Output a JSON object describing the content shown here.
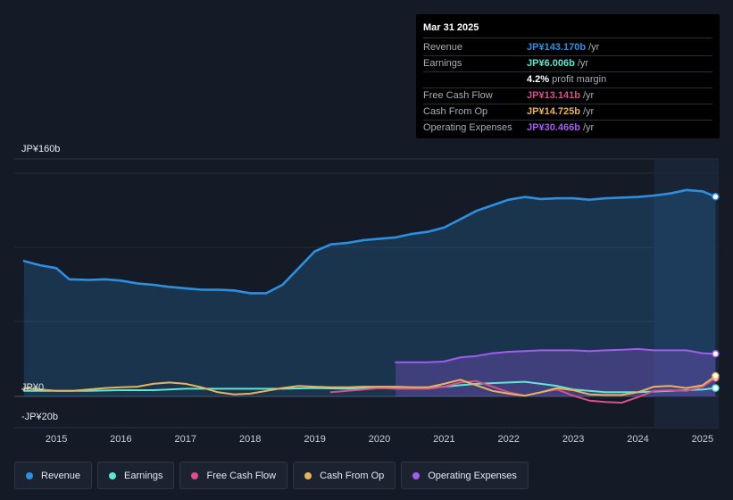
{
  "tooltip": {
    "date": "Mar 31 2025",
    "rows": [
      {
        "label": "Revenue",
        "value": "JP¥143.170b",
        "unit": "/yr",
        "color": "#2d8fe0"
      },
      {
        "label": "Earnings",
        "value": "JP¥6.006b",
        "unit": "/yr",
        "color": "#5ee8d4"
      },
      {
        "label": "",
        "value": "4.2%",
        "unit": "profit margin",
        "color": "#ffffff"
      },
      {
        "label": "Free Cash Flow",
        "value": "JP¥13.141b",
        "unit": "/yr",
        "color": "#d8508a"
      },
      {
        "label": "Cash From Op",
        "value": "JP¥14.725b",
        "unit": "/yr",
        "color": "#e9b35b"
      },
      {
        "label": "Operating Expenses",
        "value": "JP¥30.466b",
        "unit": "/yr",
        "color": "#a35cf0"
      }
    ]
  },
  "legend": [
    {
      "label": "Revenue",
      "color": "#2d8fe0"
    },
    {
      "label": "Earnings",
      "color": "#5ee8d4"
    },
    {
      "label": "Free Cash Flow",
      "color": "#d8508a"
    },
    {
      "label": "Cash From Op",
      "color": "#e9b35b"
    },
    {
      "label": "Operating Expenses",
      "color": "#a35cf0"
    }
  ],
  "chart_data": {
    "type": "area",
    "ylim": [
      -20,
      160
    ],
    "y_tick_labels": [
      {
        "value": 160,
        "label": "JP¥160b"
      },
      {
        "value": 0,
        "label": "JP¥0"
      },
      {
        "value": -20,
        "label": "-JP¥20b"
      }
    ],
    "x_tick_labels": [
      "2015",
      "2016",
      "2017",
      "2018",
      "2019",
      "2020",
      "2021",
      "2022",
      "2023",
      "2024",
      "2025"
    ],
    "x_ticks": [
      2015,
      2016,
      2017,
      2018,
      2019,
      2020,
      2021,
      2022,
      2023,
      2024,
      2025
    ],
    "xlim": [
      2014.35,
      2025.25
    ],
    "forecast_shade_start": 2024.25,
    "series": [
      {
        "name": "Revenue",
        "color": "#2d8fe0",
        "fill": true,
        "x": [
          2014.5,
          2014.75,
          2015.0,
          2015.2,
          2015.5,
          2015.75,
          2016.0,
          2016.25,
          2016.5,
          2016.75,
          2017.0,
          2017.25,
          2017.5,
          2017.75,
          2018.0,
          2018.25,
          2018.5,
          2018.75,
          2019.0,
          2019.25,
          2019.5,
          2019.75,
          2020.0,
          2020.25,
          2020.5,
          2020.75,
          2021.0,
          2021.25,
          2021.5,
          2021.75,
          2022.0,
          2022.25,
          2022.5,
          2022.75,
          2023.0,
          2023.25,
          2023.5,
          2023.75,
          2024.0,
          2024.25,
          2024.5,
          2024.75,
          2025.0,
          2025.2
        ],
        "values": [
          97,
          94,
          92,
          84,
          83.5,
          84,
          83,
          81,
          80,
          78.5,
          77.5,
          76.5,
          76.5,
          76,
          74,
          74,
          80,
          92,
          104,
          109,
          110,
          112,
          113,
          114,
          116.5,
          118,
          121,
          127,
          133,
          137,
          141,
          143,
          141.5,
          142,
          142,
          141,
          142,
          142.5,
          143,
          144,
          145.5,
          148,
          147,
          143.2
        ]
      },
      {
        "name": "Earnings",
        "color": "#5ee8d4",
        "fill": false,
        "x": [
          2014.5,
          2015.0,
          2015.5,
          2016.0,
          2016.5,
          2017.0,
          2017.5,
          2018.0,
          2018.5,
          2019.0,
          2019.5,
          2020.0,
          2020.5,
          2021.0,
          2021.5,
          2022.0,
          2022.25,
          2022.5,
          2022.75,
          2023.0,
          2023.5,
          2024.0,
          2024.5,
          2024.75,
          2025.0,
          2025.2
        ],
        "values": [
          4,
          4,
          4,
          4.5,
          4.5,
          5.5,
          5.5,
          5.5,
          5.5,
          6,
          5.5,
          6,
          6,
          7,
          9,
          10,
          10.5,
          9,
          7.5,
          5,
          3,
          3,
          4,
          4.5,
          5,
          6
        ]
      },
      {
        "name": "Free Cash Flow",
        "color": "#d8508a",
        "fill": false,
        "x": [
          2019.25,
          2019.5,
          2019.75,
          2020.0,
          2020.25,
          2020.5,
          2020.75,
          2021.0,
          2021.25,
          2021.5,
          2021.75,
          2022.0,
          2022.25,
          2022.5,
          2022.75,
          2023.0,
          2023.25,
          2023.5,
          2023.75,
          2024.0,
          2024.25,
          2024.5,
          2024.75,
          2025.0,
          2025.2
        ],
        "values": [
          3,
          4,
          5,
          6,
          5.5,
          5.5,
          5.5,
          7,
          10,
          11,
          7,
          3,
          0.5,
          3,
          5,
          0.5,
          -3,
          -4,
          -4.5,
          -0.5,
          4,
          4.5,
          4,
          7,
          13.1
        ]
      },
      {
        "name": "Cash From Op",
        "color": "#e9b35b",
        "fill": false,
        "x": [
          2014.5,
          2014.75,
          2015.0,
          2015.25,
          2015.5,
          2015.75,
          2016.0,
          2016.25,
          2016.5,
          2016.75,
          2017.0,
          2017.25,
          2017.5,
          2017.75,
          2018.0,
          2018.25,
          2018.5,
          2018.75,
          2019.0,
          2019.25,
          2019.5,
          2019.75,
          2020.0,
          2020.25,
          2020.5,
          2020.75,
          2021.0,
          2021.25,
          2021.5,
          2021.75,
          2022.0,
          2022.25,
          2022.5,
          2022.75,
          2023.0,
          2023.25,
          2023.5,
          2023.75,
          2024.0,
          2024.25,
          2024.5,
          2024.75,
          2025.0,
          2025.2
        ],
        "values": [
          6,
          5,
          4,
          4,
          5,
          6,
          6.5,
          7,
          9,
          10,
          9,
          6.5,
          3,
          1.5,
          2,
          4,
          6,
          7.5,
          7,
          6.5,
          6.5,
          7,
          7,
          7,
          6.5,
          6.5,
          9,
          12,
          8,
          4,
          2,
          0.5,
          3,
          6,
          4.5,
          1.5,
          1,
          1,
          3,
          7,
          7.5,
          6,
          8,
          14.7
        ]
      },
      {
        "name": "Operating Expenses",
        "color": "#a35cf0",
        "fill": true,
        "x": [
          2020.25,
          2020.5,
          2020.75,
          2021.0,
          2021.25,
          2021.5,
          2021.75,
          2022.0,
          2022.25,
          2022.5,
          2022.75,
          2023.0,
          2023.25,
          2023.5,
          2023.75,
          2024.0,
          2024.25,
          2024.5,
          2024.75,
          2025.0,
          2025.2
        ],
        "values": [
          24.5,
          24.5,
          24.5,
          25,
          28,
          29,
          31,
          32,
          32.5,
          33,
          33,
          33,
          32.5,
          33,
          33.5,
          34,
          33,
          33,
          33,
          31,
          30.5
        ]
      }
    ]
  }
}
